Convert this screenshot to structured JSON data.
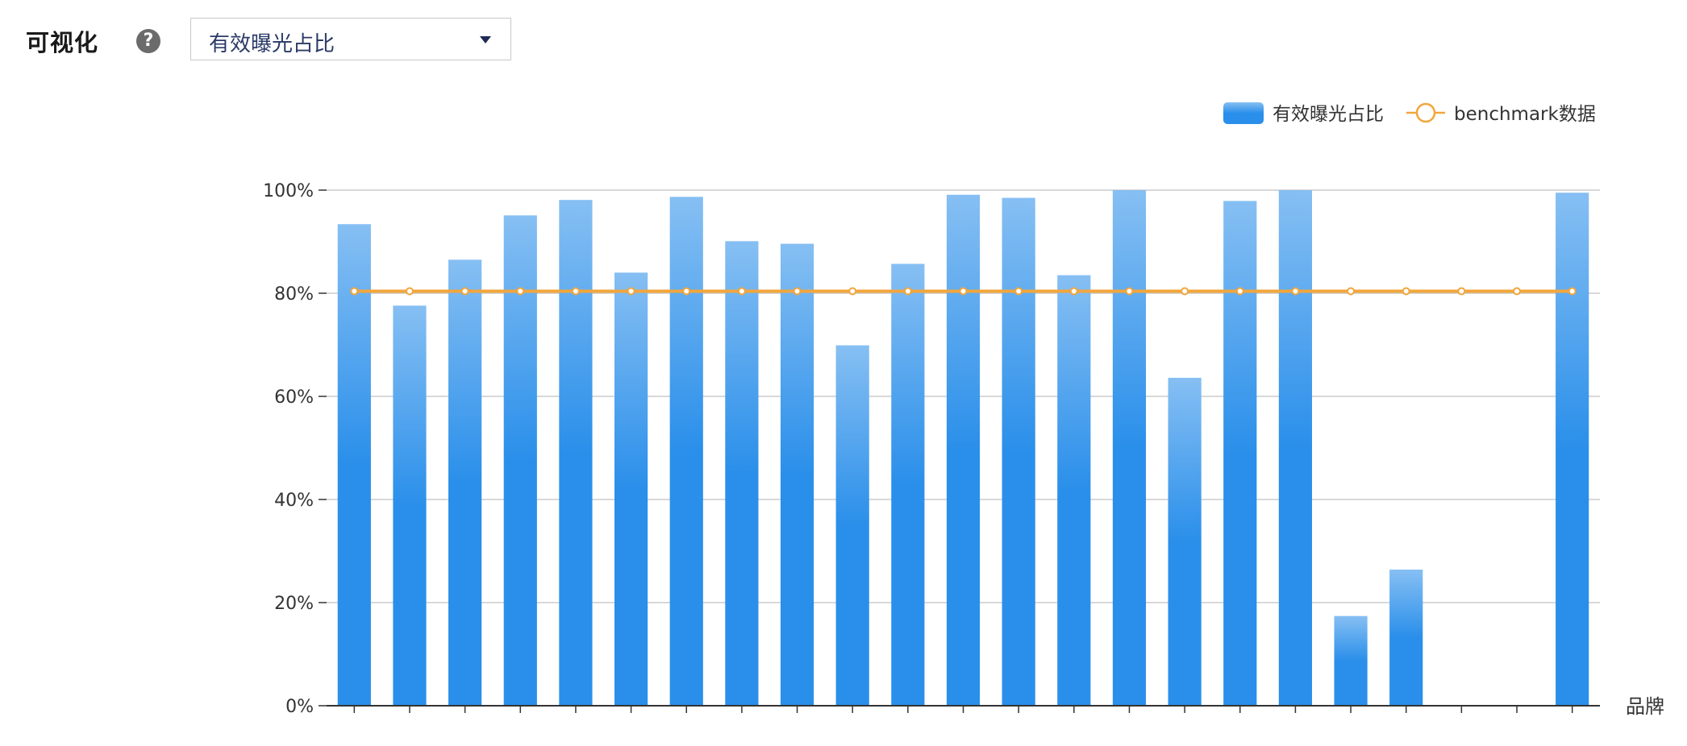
{
  "header": {
    "title": "可视化",
    "help_icon": "question-circle-icon",
    "help_glyph": "?",
    "select": {
      "value": "有效曝光占比",
      "caret_icon": "caret-down-icon"
    }
  },
  "chart_data": {
    "type": "bar",
    "categories": [
      "",
      "",
      "",
      "",
      "",
      "",
      "",
      "",
      "",
      "",
      "",
      "",
      "",
      "",
      "",
      "",
      "",
      "",
      "",
      "",
      "",
      "",
      ""
    ],
    "series": [
      {
        "name": "有效曝光占比",
        "type": "bar",
        "color": "#2a8fea",
        "color_light": "#86bff3",
        "values": [
          93.4,
          77.6,
          86.5,
          95.1,
          98.1,
          84.0,
          98.7,
          90.1,
          89.6,
          69.9,
          85.7,
          99.1,
          98.5,
          83.5,
          100.0,
          63.6,
          97.9,
          100.0,
          17.4,
          26.4,
          0,
          0,
          99.5
        ]
      },
      {
        "name": "benchmark数据",
        "type": "line",
        "color": "#f2a63c",
        "values": [
          80.4,
          80.4,
          80.4,
          80.4,
          80.4,
          80.4,
          80.4,
          80.4,
          80.4,
          80.4,
          80.4,
          80.4,
          80.4,
          80.4,
          80.4,
          80.4,
          80.4,
          80.4,
          80.4,
          80.4,
          80.4,
          80.4,
          80.4
        ]
      }
    ],
    "ylim": [
      0,
      100
    ],
    "yticks": [
      "0%",
      "20%",
      "40%",
      "60%",
      "80%",
      "100%"
    ],
    "xlabel": "品牌",
    "ylabel": "",
    "title": "",
    "grid": true,
    "legend_position": "top-right",
    "colors": {
      "grid": "#cccccc",
      "axis": "#333333",
      "tick_text": "#333333"
    }
  }
}
